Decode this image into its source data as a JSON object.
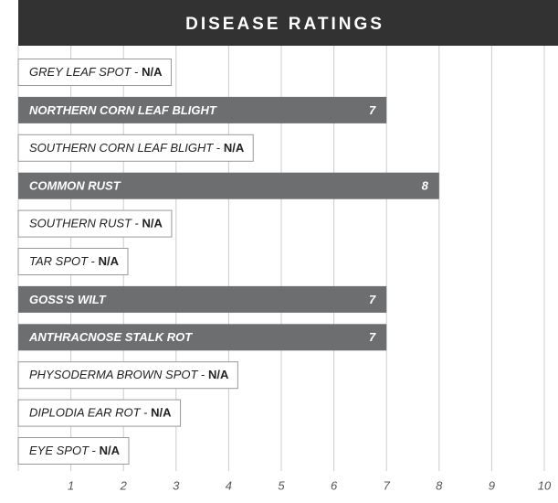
{
  "chart_data": {
    "type": "bar",
    "orientation": "horizontal",
    "title": "DISEASE RATINGS",
    "categories": [
      "GREY LEAF SPOT",
      "NORTHERN CORN LEAF BLIGHT",
      "SOUTHERN CORN LEAF BLIGHT",
      "COMMON RUST",
      "SOUTHERN RUST",
      "TAR SPOT",
      "GOSS'S WILT",
      "ANTHRACNOSE STALK ROT",
      "PHYSODERMA BROWN SPOT",
      "DIPLODIA EAR ROT",
      "EYE SPOT"
    ],
    "values": [
      null,
      7,
      null,
      8,
      null,
      null,
      7,
      7,
      null,
      null,
      null
    ],
    "value_labels": [
      "N/A",
      "7",
      "N/A",
      "8",
      "N/A",
      "N/A",
      "7",
      "7",
      "N/A",
      "N/A",
      "N/A"
    ],
    "separator": " - ",
    "color": "#6d6e70",
    "xlim": [
      0,
      10
    ],
    "xticks": [
      1,
      2,
      3,
      4,
      5,
      6,
      7,
      8,
      9,
      10
    ],
    "grid": true
  }
}
